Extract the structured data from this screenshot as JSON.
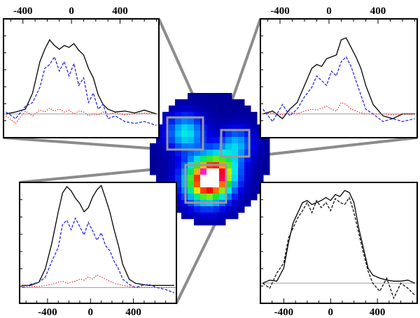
{
  "figure": {
    "background": "#ffffff",
    "connector_color": "#8c8c8c",
    "highlight_box_color": "#9a9a9a"
  },
  "chart_data": [
    {
      "type": "line",
      "panel": "top-left",
      "xlim": [
        -560,
        720
      ],
      "xticks": [
        -400,
        0,
        400
      ],
      "xtick_labels": [
        "-400",
        "0",
        "400"
      ],
      "tick_labels_position": "top",
      "ylim": [
        -0.25,
        1.0
      ],
      "baseline": 0,
      "series": [
        {
          "style": "solid",
          "color": "#000000",
          "x": [
            -540,
            -460,
            -380,
            -320,
            -260,
            -220,
            -180,
            -140,
            -100,
            -60,
            -20,
            20,
            60,
            100,
            140,
            180,
            220,
            260,
            300,
            360,
            440,
            520,
            600,
            700
          ],
          "y": [
            0.0,
            0.02,
            0.05,
            0.22,
            0.55,
            0.68,
            0.78,
            0.72,
            0.68,
            0.72,
            0.7,
            0.74,
            0.67,
            0.62,
            0.48,
            0.38,
            0.2,
            0.1,
            0.05,
            0.02,
            0.03,
            0.01,
            0.04,
            0.0
          ]
        },
        {
          "style": "dashed",
          "color": "#2a2ad8",
          "x": [
            -540,
            -460,
            -380,
            -320,
            -260,
            -220,
            -180,
            -140,
            -100,
            -60,
            -20,
            20,
            60,
            100,
            140,
            180,
            220,
            260,
            300,
            360,
            440,
            520,
            600,
            700
          ],
          "y": [
            0.02,
            -0.05,
            0.08,
            0.12,
            0.28,
            0.48,
            0.52,
            0.6,
            0.45,
            0.55,
            0.4,
            0.53,
            0.3,
            0.38,
            0.12,
            0.22,
            0.05,
            0.1,
            -0.05,
            -0.02,
            -0.08,
            -0.1,
            -0.08,
            -0.12
          ]
        },
        {
          "style": "dotted",
          "color": "#e83a3a",
          "x": [
            -540,
            -460,
            -380,
            -320,
            -260,
            -220,
            -180,
            -140,
            -100,
            -60,
            -20,
            20,
            60,
            100,
            140,
            180,
            220,
            260,
            300,
            360,
            440,
            520,
            600,
            700
          ],
          "y": [
            -0.02,
            -0.1,
            0.03,
            -0.02,
            0.04,
            0.02,
            0.06,
            0.03,
            0.05,
            0.02,
            0.04,
            0.0,
            0.03,
            0.02,
            -0.02,
            0.0,
            -0.01,
            0.02,
            0.0,
            0.01,
            -0.01,
            0.0,
            0.01,
            0.0
          ]
        }
      ]
    },
    {
      "type": "line",
      "panel": "top-right",
      "xlim": [
        -560,
        720
      ],
      "xticks": [
        -400,
        0,
        400
      ],
      "xtick_labels": [
        "-400",
        "0",
        "400"
      ],
      "tick_labels_position": "top",
      "ylim": [
        -0.25,
        1.0
      ],
      "baseline": 0,
      "series": [
        {
          "style": "solid",
          "color": "#000000",
          "x": [
            -540,
            -460,
            -380,
            -320,
            -260,
            -200,
            -140,
            -100,
            -60,
            -20,
            20,
            60,
            100,
            140,
            180,
            220,
            260,
            300,
            360,
            440,
            520,
            600,
            700
          ],
          "y": [
            0.0,
            0.03,
            -0.05,
            0.05,
            0.12,
            0.3,
            0.48,
            0.52,
            0.5,
            0.58,
            0.6,
            0.62,
            0.78,
            0.8,
            0.7,
            0.6,
            0.48,
            0.3,
            0.1,
            -0.02,
            -0.05,
            0.0,
            0.0
          ]
        },
        {
          "style": "dashed",
          "color": "#2a2ad8",
          "x": [
            -540,
            -460,
            -380,
            -320,
            -260,
            -200,
            -140,
            -100,
            -60,
            -20,
            20,
            60,
            100,
            140,
            180,
            220,
            260,
            300,
            360,
            440,
            520,
            600,
            700
          ],
          "y": [
            0.05,
            -0.08,
            0.1,
            -0.02,
            0.05,
            0.18,
            0.28,
            0.4,
            0.35,
            0.3,
            0.45,
            0.4,
            0.55,
            0.6,
            0.5,
            0.35,
            0.2,
            0.05,
            0.0,
            -0.08,
            -0.05,
            -0.08,
            -0.05
          ]
        },
        {
          "style": "dotted",
          "color": "#e83a3a",
          "x": [
            -540,
            -460,
            -380,
            -320,
            -260,
            -200,
            -140,
            -100,
            -60,
            -20,
            20,
            60,
            100,
            140,
            180,
            220,
            260,
            300,
            360,
            440,
            520,
            600,
            700
          ],
          "y": [
            0.0,
            0.01,
            -0.01,
            0.02,
            0.0,
            0.03,
            0.05,
            0.04,
            0.06,
            0.08,
            0.05,
            0.03,
            0.12,
            0.1,
            0.05,
            0.03,
            0.01,
            0.0,
            0.0,
            0.0,
            -0.01,
            0.0,
            0.0
          ]
        }
      ]
    },
    {
      "type": "line",
      "panel": "bottom-left",
      "xlim": [
        -660,
        800
      ],
      "xticks": [
        -400,
        0,
        400
      ],
      "xtick_labels": [
        "-400",
        "0",
        "400"
      ],
      "tick_labels_position": "bottom",
      "ylim": [
        -0.15,
        1.0
      ],
      "baseline": 0,
      "series": [
        {
          "style": "solid",
          "color": "#000000",
          "x": [
            -640,
            -560,
            -480,
            -420,
            -360,
            -300,
            -260,
            -220,
            -180,
            -140,
            -100,
            -60,
            -20,
            20,
            60,
            100,
            140,
            180,
            220,
            260,
            300,
            360,
            420,
            480,
            540,
            620,
            700,
            780
          ],
          "y": [
            0.02,
            0.02,
            0.05,
            0.18,
            0.42,
            0.72,
            0.9,
            0.96,
            0.92,
            0.85,
            0.8,
            0.72,
            0.76,
            0.86,
            0.93,
            0.97,
            0.85,
            0.72,
            0.55,
            0.4,
            0.22,
            0.08,
            0.04,
            0.03,
            0.02,
            0.02,
            0.02,
            0.02
          ]
        },
        {
          "style": "dashed",
          "color": "#2a2ad8",
          "x": [
            -640,
            -560,
            -480,
            -420,
            -360,
            -300,
            -260,
            -220,
            -180,
            -140,
            -100,
            -60,
            -20,
            20,
            60,
            100,
            140,
            180,
            220,
            260,
            300,
            360,
            420,
            480,
            540,
            620,
            700,
            780
          ],
          "y": [
            0.0,
            0.03,
            0.05,
            0.1,
            0.25,
            0.38,
            0.6,
            0.64,
            0.55,
            0.66,
            0.58,
            0.5,
            0.62,
            0.54,
            0.45,
            0.52,
            0.4,
            0.35,
            0.25,
            0.18,
            0.08,
            0.03,
            0.0,
            0.02,
            0.03,
            0.0,
            -0.02,
            -0.05
          ]
        },
        {
          "style": "dotted",
          "color": "#e83a3a",
          "x": [
            -640,
            -560,
            -480,
            -420,
            -360,
            -300,
            -260,
            -220,
            -180,
            -140,
            -100,
            -60,
            -20,
            20,
            60,
            100,
            140,
            180,
            220,
            260,
            300,
            360,
            420,
            480,
            540,
            620,
            700,
            780
          ],
          "y": [
            0.0,
            0.01,
            0.01,
            0.02,
            0.03,
            0.05,
            0.06,
            0.04,
            0.05,
            0.06,
            0.08,
            0.07,
            0.1,
            0.08,
            0.12,
            0.1,
            0.08,
            0.06,
            0.04,
            0.03,
            0.02,
            0.01,
            0.0,
            0.0,
            0.0,
            0.0,
            0.0,
            0.0
          ]
        }
      ]
    },
    {
      "type": "line",
      "panel": "bottom-right",
      "xlim": [
        -600,
        740
      ],
      "xticks": [
        -400,
        0,
        400
      ],
      "xtick_labels": [
        "-400",
        "0",
        "400"
      ],
      "tick_labels_position": "bottom",
      "ylim": [
        -0.2,
        1.0
      ],
      "baseline": 0,
      "series": [
        {
          "style": "solid",
          "color": "#000000",
          "x": [
            -580,
            -520,
            -460,
            -400,
            -360,
            -320,
            -280,
            -240,
            -200,
            -160,
            -120,
            -80,
            -40,
            0,
            40,
            80,
            120,
            160,
            200,
            240,
            280,
            320,
            360,
            420,
            480,
            540,
            600,
            660,
            720
          ],
          "y": [
            0.0,
            0.03,
            0.02,
            0.15,
            0.4,
            0.6,
            0.7,
            0.8,
            0.82,
            0.78,
            0.8,
            0.82,
            0.85,
            0.82,
            0.88,
            0.86,
            0.92,
            0.9,
            0.8,
            0.55,
            0.35,
            0.15,
            0.08,
            0.05,
            0.03,
            0.02,
            0.02,
            0.03,
            0.0
          ]
        },
        {
          "style": "dashed",
          "color": "#111111",
          "x": [
            -580,
            -520,
            -460,
            -400,
            -360,
            -320,
            -280,
            -240,
            -200,
            -160,
            -120,
            -80,
            -40,
            0,
            40,
            80,
            120,
            160,
            200,
            240,
            280,
            320,
            360,
            420,
            480,
            540,
            600,
            660,
            720
          ],
          "y": [
            0.0,
            -0.05,
            0.1,
            0.2,
            0.45,
            0.55,
            0.65,
            0.72,
            0.8,
            0.7,
            0.82,
            0.75,
            0.8,
            0.72,
            0.84,
            0.8,
            0.78,
            0.85,
            0.7,
            0.5,
            0.3,
            0.12,
            0.0,
            -0.08,
            0.05,
            -0.15,
            0.0,
            -0.05,
            -0.12
          ]
        }
      ]
    }
  ]
}
